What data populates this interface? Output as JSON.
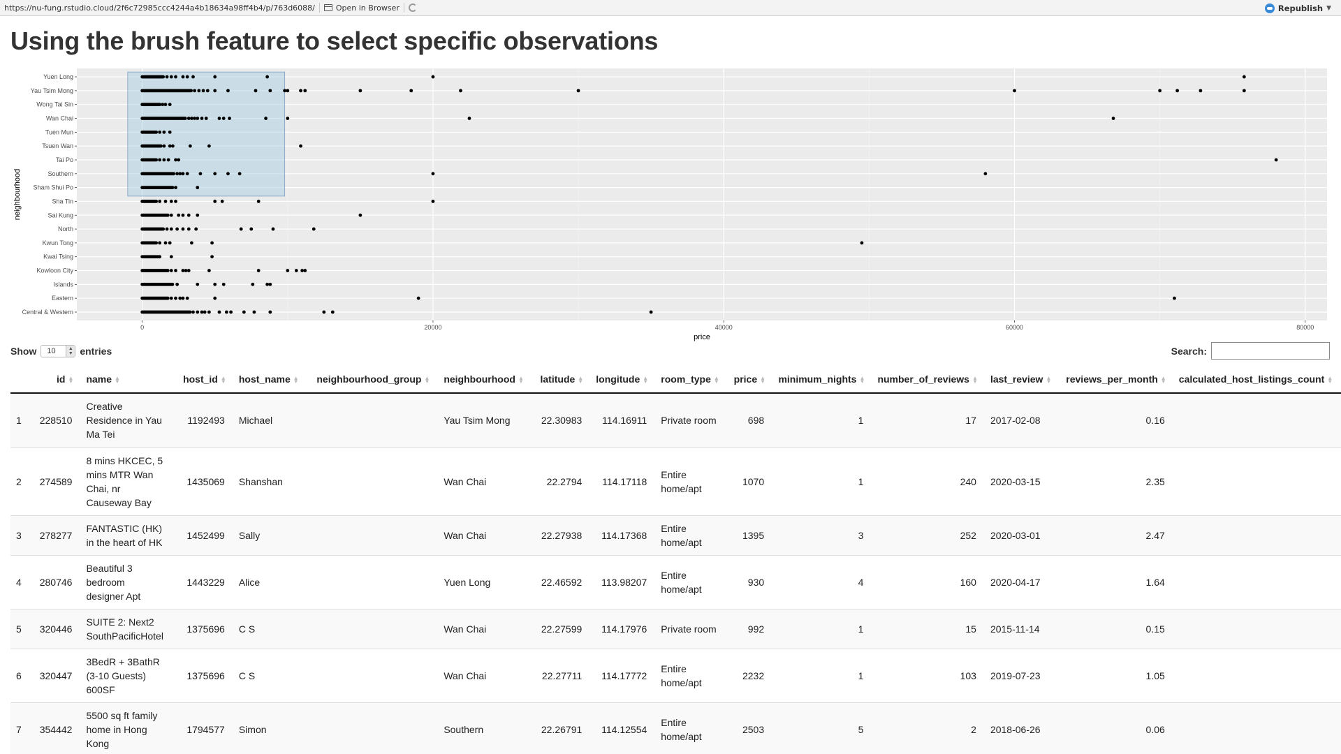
{
  "topbar": {
    "url": "https://nu-fung.rstudio.cloud/2f6c72985ccc4244a4b18634a98ff4b4/p/763d6088/",
    "open_in_browser": "Open in Browser",
    "republish": "Republish"
  },
  "title": "Using the brush feature to select specific observations",
  "chart_data": {
    "type": "scatter",
    "xlabel": "price",
    "ylabel": "neighbourhood",
    "xlim": [
      -4500,
      81500
    ],
    "xticks": [
      0,
      20000,
      40000,
      60000,
      80000
    ],
    "xtick_labels": [
      "0",
      "20000",
      "40000",
      "60000",
      "80000"
    ],
    "categories": [
      "Central & Western",
      "Eastern",
      "Islands",
      "Kowloon City",
      "Kwai Tsing",
      "Kwun Tong",
      "North",
      "Sai Kung",
      "Sha Tin",
      "Sham Shui Po",
      "Southern",
      "Tai Po",
      "Tsuen Wan",
      "Tuen Mun",
      "Wan Chai",
      "Wong Tai Sin",
      "Yau Tsim Mong",
      "Yuen Long"
    ],
    "background": "#ebebeb",
    "grid": true,
    "brush": {
      "x": [
        -1000,
        9800
      ],
      "y": [
        "Sham Shui Po",
        "Yuen Long"
      ],
      "fill": "#9ecae1"
    },
    "points": {
      "Yuen Long": {
        "clusterEnd": 1500,
        "x": [
          1700,
          2000,
          2300,
          2800,
          3100,
          3500,
          5000,
          8600,
          20000,
          75800
        ]
      },
      "Yau Tsim Mong": {
        "clusterEnd": 3400,
        "x": [
          3600,
          3900,
          4200,
          4500,
          5000,
          5900,
          7800,
          8800,
          9800,
          10000,
          10900,
          11200,
          15000,
          18500,
          21900,
          30000,
          60000,
          70000,
          71200,
          72800,
          75800
        ]
      },
      "Wong Tai Sin": {
        "clusterEnd": 1200,
        "x": [
          1400,
          1600,
          1900
        ]
      },
      "Wan Chai": {
        "clusterEnd": 3000,
        "x": [
          3200,
          3400,
          3600,
          3800,
          4100,
          4400,
          5300,
          5600,
          6000,
          8500,
          10000,
          22500,
          66800
        ]
      },
      "Tuen Mun": {
        "clusterEnd": 1000,
        "x": [
          1200,
          1500,
          1900
        ]
      },
      "Tsuen Wan": {
        "clusterEnd": 1300,
        "x": [
          1500,
          1900,
          2100,
          3300,
          4600,
          10900
        ]
      },
      "Tai Po": {
        "clusterEnd": 1000,
        "x": [
          1200,
          1500,
          1800,
          2300,
          2500,
          78000
        ]
      },
      "Southern": {
        "clusterEnd": 2200,
        "x": [
          2400,
          2600,
          2800,
          3100,
          4000,
          5000,
          5900,
          6700,
          20000,
          58000
        ]
      },
      "Sham Shui Po": {
        "clusterEnd": 2100,
        "x": [
          2300,
          3800
        ]
      },
      "Sha Tin": {
        "clusterEnd": 1000,
        "x": [
          1200,
          1600,
          2000,
          2300,
          5000,
          5500,
          8000,
          20000
        ]
      },
      "Sai Kung": {
        "clusterEnd": 1800,
        "x": [
          2000,
          2500,
          2800,
          3200,
          3800,
          15000
        ]
      },
      "North": {
        "clusterEnd": 1500,
        "x": [
          1700,
          2000,
          2400,
          2800,
          3200,
          3700,
          6800,
          7500,
          9000,
          11800
        ]
      },
      "Kwun Tong": {
        "clusterEnd": 1000,
        "x": [
          1200,
          1600,
          1900,
          3400,
          4800,
          49500
        ]
      },
      "Kwai Tsing": {
        "clusterEnd": 1200,
        "x": [
          2000,
          4800
        ]
      },
      "Kowloon City": {
        "clusterEnd": 1800,
        "x": [
          2000,
          2300,
          2800,
          3000,
          3200,
          4600,
          8000,
          10000,
          10600,
          11000,
          11200
        ]
      },
      "Islands": {
        "clusterEnd": 2100,
        "x": [
          2400,
          3800,
          5000,
          5600,
          7600,
          8600,
          8800
        ]
      },
      "Eastern": {
        "clusterEnd": 1800,
        "x": [
          2000,
          2300,
          2600,
          2800,
          3100,
          5000,
          19000,
          71000
        ]
      },
      "Central & Western": {
        "clusterEnd": 3300,
        "x": [
          3500,
          3800,
          4100,
          4300,
          4600,
          5300,
          5800,
          6100,
          7000,
          7700,
          8800,
          12500,
          13100,
          35000
        ]
      }
    }
  },
  "length": {
    "show": "Show",
    "value": "10",
    "entries": "entries"
  },
  "search": {
    "label": "Search:"
  },
  "table": {
    "columns": [
      {
        "label": "",
        "align": "rownum",
        "width": 22
      },
      {
        "label": "id",
        "align": "num",
        "width": 64
      },
      {
        "label": "name",
        "align": "text",
        "width": 116
      },
      {
        "label": "host_id",
        "align": "num",
        "width": 80
      },
      {
        "label": "host_name",
        "align": "text",
        "width": 108
      },
      {
        "label": "neighbourhood_group",
        "align": "text",
        "width": 166
      },
      {
        "label": "neighbourhood",
        "align": "text",
        "width": 126
      },
      {
        "label": "latitude",
        "align": "num",
        "width": 64
      },
      {
        "label": "longitude",
        "align": "num",
        "width": 72
      },
      {
        "label": "room_type",
        "align": "text",
        "width": 90
      },
      {
        "label": "price",
        "align": "num",
        "width": 44
      },
      {
        "label": "minimum_nights",
        "align": "num",
        "width": 123
      },
      {
        "label": "number_of_reviews",
        "align": "num",
        "width": 140
      },
      {
        "label": "last_review",
        "align": "text",
        "width": 92
      },
      {
        "label": "reviews_per_month",
        "align": "num",
        "width": 144
      },
      {
        "label": "calculated_host_listings_count",
        "align": "text",
        "width": 230
      }
    ],
    "rows": [
      {
        "h": 78,
        "cells": [
          "1",
          "228510",
          "Creative Residence in Yau Ma Tei",
          "1192493",
          "Michael",
          "",
          "Yau Tsim Mong",
          "22.30983",
          "114.16911",
          "Private room",
          "698",
          "1",
          "17",
          "2017-02-08",
          "0.16",
          ""
        ]
      },
      {
        "h": 97,
        "cells": [
          "2",
          "274589",
          "8 mins HKCEC, 5 mins MTR Wan Chai, nr Causeway Bay",
          "1435069",
          "Shanshan",
          "",
          "Wan Chai",
          "22.2794",
          "114.17118",
          "Entire home/apt",
          "1070",
          "1",
          "240",
          "2020-03-15",
          "2.35",
          ""
        ]
      },
      {
        "h": 57,
        "cells": [
          "3",
          "278277",
          "FANTASTIC (HK) in the heart of HK",
          "1452499",
          "Sally",
          "",
          "Wan Chai",
          "22.27938",
          "114.17368",
          "Entire home/apt",
          "1395",
          "3",
          "252",
          "2020-03-01",
          "2.47",
          ""
        ]
      },
      {
        "h": 77,
        "cells": [
          "4",
          "280746",
          "Beautiful 3 bedroom designer Apt",
          "1443229",
          "Alice",
          "",
          "Yuen Long",
          "22.46592",
          "113.98207",
          "Entire home/apt",
          "930",
          "4",
          "160",
          "2020-04-17",
          "1.64",
          ""
        ]
      },
      {
        "h": 57,
        "cells": [
          "5",
          "320446",
          "SUITE 2: Next2 SouthPacificHotel",
          "1375696",
          "C S",
          "",
          "Wan Chai",
          "22.27599",
          "114.17976",
          "Private room",
          "992",
          "1",
          "15",
          "2015-11-14",
          "0.15",
          ""
        ]
      },
      {
        "h": 77,
        "cells": [
          "6",
          "320447",
          "3BedR + 3BathR (3-10 Guests) 600SF",
          "1375696",
          "C S",
          "",
          "Wan Chai",
          "22.27711",
          "114.17772",
          "Entire home/apt",
          "2232",
          "1",
          "103",
          "2019-07-23",
          "1.05",
          ""
        ]
      },
      {
        "h": 77,
        "cells": [
          "7",
          "354442",
          "5500 sq ft family home in Hong Kong",
          "1794577",
          "Simon",
          "",
          "Southern",
          "22.26791",
          "114.12554",
          "Entire home/apt",
          "2503",
          "5",
          "2",
          "2018-06-26",
          "0.06",
          ""
        ]
      }
    ]
  }
}
